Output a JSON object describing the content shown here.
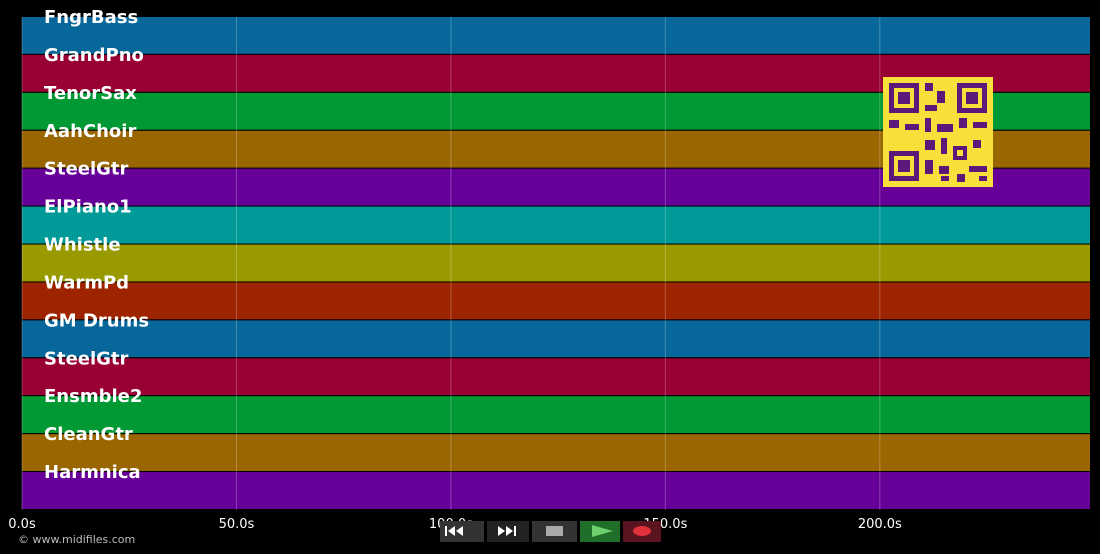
{
  "timeline": {
    "xlim": [
      0,
      249
    ],
    "xticks": [
      {
        "value": 0,
        "label": "0.0s"
      },
      {
        "value": 50,
        "label": "50.0s"
      },
      {
        "value": 100,
        "label": "100.0s"
      },
      {
        "value": 150,
        "label": "150.0s"
      },
      {
        "value": 200,
        "label": "200.0s"
      }
    ]
  },
  "tracks": [
    {
      "name": "FngrBass",
      "color": "#07669a"
    },
    {
      "name": "GrandPno",
      "color": "#990033"
    },
    {
      "name": "TenorSax",
      "color": "#009933"
    },
    {
      "name": "AahChoir",
      "color": "#996600"
    },
    {
      "name": "SteelGtr",
      "color": "#660099"
    },
    {
      "name": "ElPiano1",
      "color": "#009a99"
    },
    {
      "name": "Whistle",
      "color": "#999900"
    },
    {
      "name": "WarmPd",
      "color": "#9e2400"
    },
    {
      "name": "GM Drums",
      "color": "#07669a"
    },
    {
      "name": "SteelGtr",
      "color": "#990033"
    },
    {
      "name": "Ensmble2",
      "color": "#009933"
    },
    {
      "name": "CleanGtr",
      "color": "#996600"
    },
    {
      "name": "Harmnica",
      "color": "#660099"
    }
  ],
  "copyright": "© www.midifiles.com"
}
